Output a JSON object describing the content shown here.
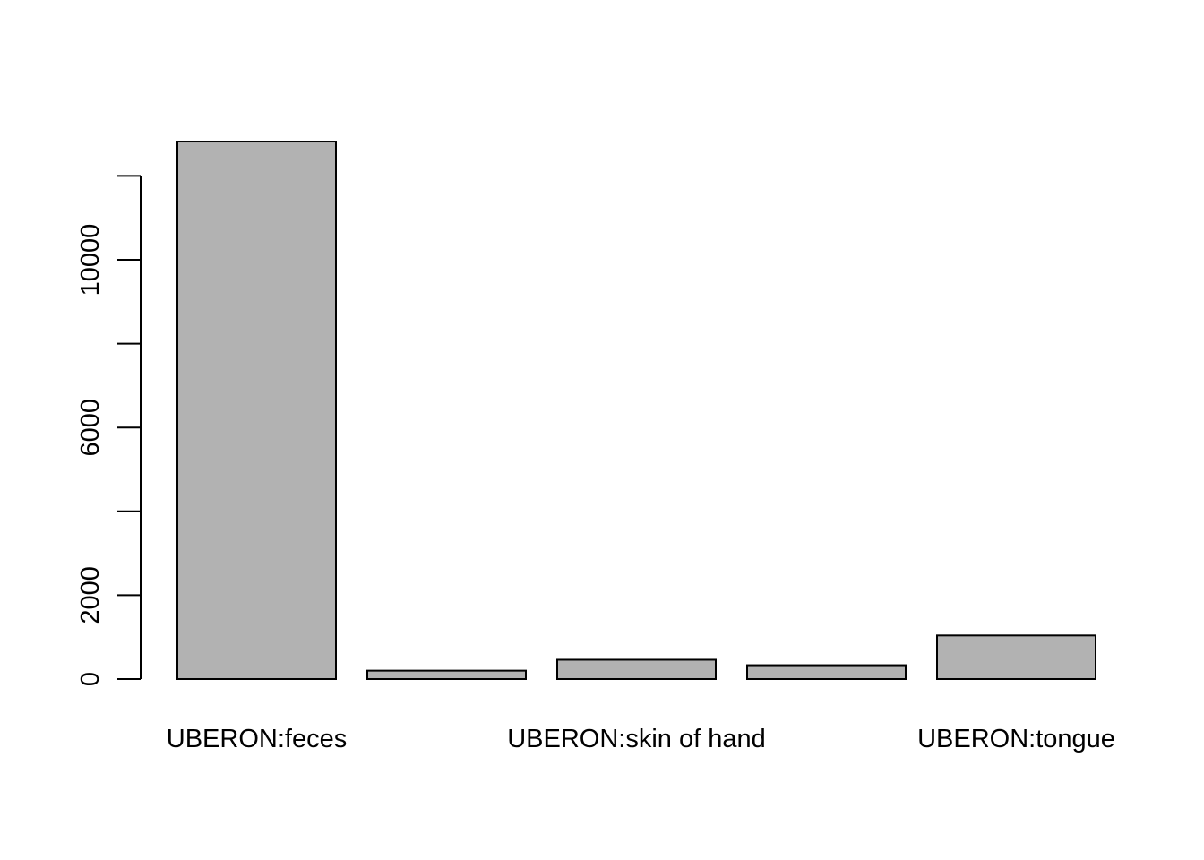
{
  "chart_data": {
    "type": "bar",
    "categories": [
      "UBERON:feces",
      "",
      "UBERON:skin of hand",
      "",
      "UBERON:tongue"
    ],
    "values": [
      12820,
      200,
      460,
      330,
      1040
    ],
    "title": "",
    "xlabel": "",
    "ylabel": "",
    "ylim": [
      0,
      12820
    ],
    "yaxis_ticks": [
      0,
      2000,
      4000,
      6000,
      8000,
      10000,
      12000
    ],
    "yaxis_tick_labels": [
      "0",
      "2000",
      "",
      "6000",
      "",
      "10000",
      ""
    ],
    "grid": false,
    "legend": "none",
    "bar_color": "#b2b2b2"
  }
}
